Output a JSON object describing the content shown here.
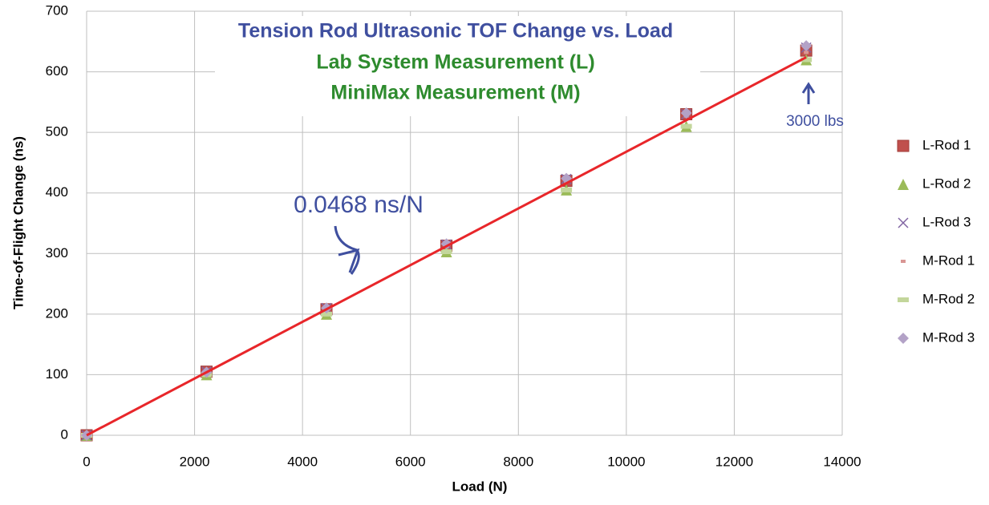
{
  "chart_data": {
    "type": "scatter",
    "title": [
      "Tension Rod Ultrasonic TOF Change vs. Load",
      "Lab System Measurement (L)",
      "MiniMax Measurement (M)"
    ],
    "title_colors": [
      "#3f4f9f",
      "#2e8b2e",
      "#2e8b2e"
    ],
    "x_label": "Load (N)",
    "y_label": "Time-of-Flight Change (ns)",
    "x": [
      0,
      2222,
      4444,
      6667,
      8889,
      11111,
      13333
    ],
    "series": [
      {
        "name": "L-Rod 1",
        "color": "#c0504d",
        "marker": "square",
        "values": [
          0,
          105,
          208,
          313,
          420,
          530,
          635
        ]
      },
      {
        "name": "L-Rod 2",
        "color": "#9bbb59",
        "marker": "triangle",
        "values": [
          0,
          100,
          200,
          303,
          405,
          510,
          620
        ]
      },
      {
        "name": "L-Rod 3",
        "color": "#8064a2",
        "marker": "x",
        "values": [
          0,
          105,
          210,
          315,
          423,
          530,
          640
        ]
      },
      {
        "name": "M-Rod 1",
        "color": "#d99694",
        "marker": "dash",
        "values": [
          0,
          103,
          207,
          311,
          418,
          527,
          632
        ]
      },
      {
        "name": "M-Rod 2",
        "color": "#c3d69b",
        "marker": "bar",
        "values": [
          0,
          100,
          200,
          303,
          405,
          510,
          620
        ]
      },
      {
        "name": "M-Rod 3",
        "color": "#b3a2c7",
        "marker": "diamond",
        "values": [
          0,
          104,
          210,
          316,
          424,
          532,
          643
        ]
      }
    ],
    "trendline": {
      "color": "#e8262a",
      "x": [
        0,
        13333
      ],
      "values": [
        0,
        624
      ]
    },
    "annotations": [
      "0.0468 ns/N",
      "3000 lbs"
    ],
    "xlim": [
      0,
      14000
    ],
    "xticks": [
      0,
      2000,
      4000,
      6000,
      8000,
      10000,
      12000,
      14000
    ],
    "ylim": [
      0,
      700
    ],
    "yticks": [
      0,
      100,
      200,
      300,
      400,
      500,
      600,
      700
    ],
    "grid": true,
    "legend": "right"
  }
}
